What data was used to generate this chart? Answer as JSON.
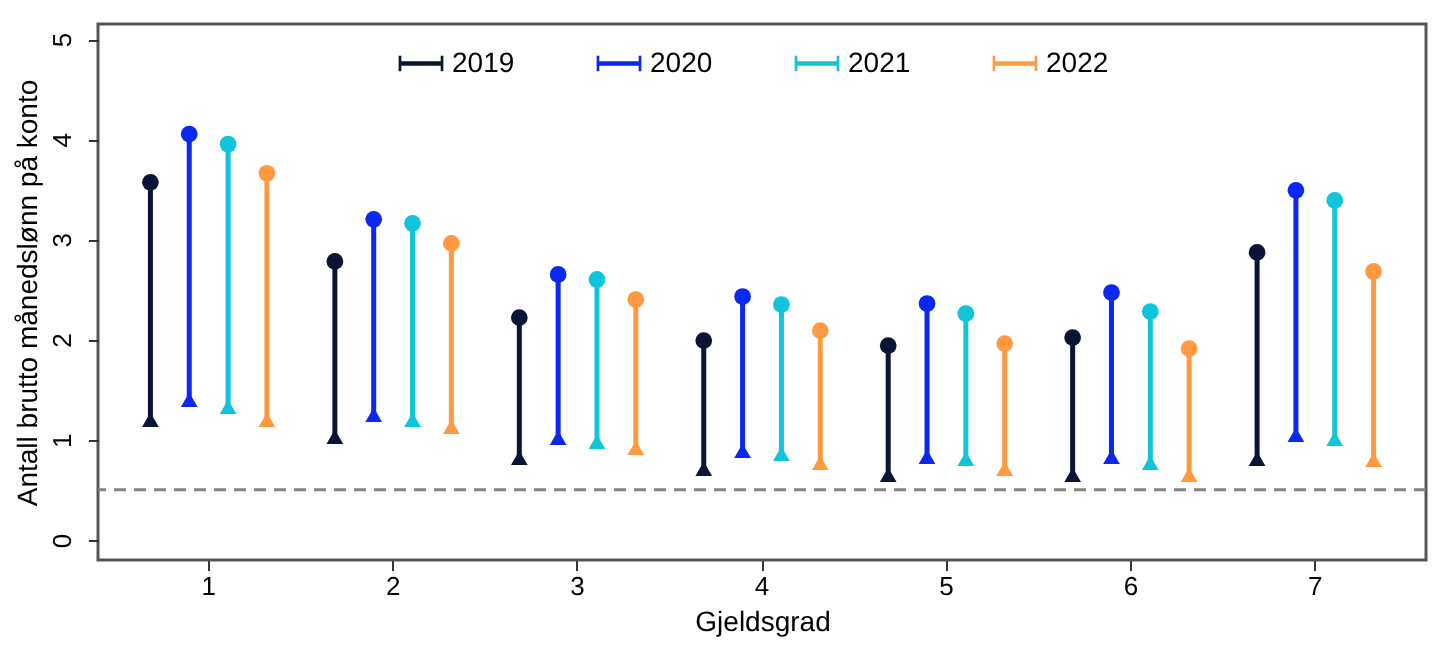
{
  "chart_data": {
    "type": "bar",
    "xlabel": "Gjeldsgrad",
    "ylabel": "Antall brutto månedslønn på konto",
    "categories": [
      "1",
      "2",
      "3",
      "4",
      "5",
      "6",
      "7"
    ],
    "series": [
      {
        "name": "2019",
        "color": "#0a1435",
        "base": [
          1.2,
          1.03,
          0.82,
          0.71,
          0.65,
          0.65,
          0.81
        ],
        "values": [
          2.37,
          1.75,
          1.4,
          1.28,
          1.29,
          1.37,
          2.06
        ]
      },
      {
        "name": "2020",
        "color": "#0a28f0",
        "base": [
          1.4,
          1.25,
          1.02,
          0.89,
          0.83,
          0.83,
          1.05
        ],
        "values": [
          2.65,
          1.95,
          1.63,
          1.54,
          1.53,
          1.64,
          2.44
        ]
      },
      {
        "name": "2021",
        "color": "#10c4dc",
        "base": [
          1.33,
          1.2,
          0.98,
          0.86,
          0.81,
          0.77,
          1.01
        ],
        "values": [
          2.62,
          1.96,
          1.62,
          1.49,
          1.45,
          1.51,
          2.38
        ]
      },
      {
        "name": "2022",
        "color": "#ff9a40",
        "base": [
          1.2,
          1.13,
          0.92,
          0.77,
          0.71,
          0.65,
          0.8
        ],
        "values": [
          2.46,
          1.83,
          1.48,
          1.32,
          1.25,
          1.26,
          1.88
        ]
      },
      {
        "type": "scatter",
        "marker": "circle",
        "color": "#0a1435",
        "x": [
          "1",
          "2",
          "3",
          "4",
          "5",
          "6",
          "7"
        ],
        "values": [
          3.57,
          2.78,
          2.22,
          1.99,
          1.94,
          2.02,
          2.87
        ]
      },
      {
        "type": "scatter",
        "marker": "circle",
        "color": "#0a28f0",
        "x": [
          "1",
          "2",
          "3",
          "4",
          "5",
          "6",
          "7"
        ],
        "values": [
          4.05,
          3.2,
          2.65,
          2.43,
          2.36,
          2.47,
          3.49
        ]
      },
      {
        "type": "scatter",
        "marker": "circle",
        "color": "#10c4dc",
        "x": [
          "1",
          "2",
          "3",
          "4",
          "5",
          "6",
          "7"
        ],
        "values": [
          3.95,
          3.16,
          2.6,
          2.35,
          2.26,
          2.28,
          3.39
        ]
      },
      {
        "type": "scatter",
        "marker": "circle",
        "color": "#ff9a40",
        "x": [
          "1",
          "2",
          "3",
          "4",
          "5",
          "6",
          "7"
        ],
        "values": [
          3.66,
          2.96,
          2.4,
          2.09,
          1.96,
          1.91,
          2.68
        ]
      },
      {
        "type": "scatter",
        "marker": "triangle",
        "color": "#0a1435",
        "x": [
          "1",
          "2",
          "3",
          "4",
          "5",
          "6",
          "7"
        ],
        "values": [
          1.2,
          1.03,
          0.82,
          0.71,
          0.65,
          0.65,
          0.81
        ]
      },
      {
        "type": "scatter",
        "marker": "triangle",
        "color": "#0a28f0",
        "x": [
          "1",
          "2",
          "3",
          "4",
          "5",
          "6",
          "7"
        ],
        "values": [
          1.4,
          1.25,
          1.02,
          0.89,
          0.83,
          0.83,
          1.05
        ]
      },
      {
        "type": "scatter",
        "marker": "triangle",
        "color": "#10c4dc",
        "x": [
          "1",
          "2",
          "3",
          "4",
          "5",
          "6",
          "7"
        ],
        "values": [
          1.33,
          1.2,
          0.98,
          0.86,
          0.81,
          0.77,
          1.01
        ]
      },
      {
        "type": "scatter",
        "marker": "triangle",
        "color": "#ff9a40",
        "x": [
          "1",
          "2",
          "3",
          "4",
          "5",
          "6",
          "7"
        ],
        "values": [
          1.2,
          1.13,
          0.92,
          0.77,
          0.71,
          0.65,
          0.8
        ]
      }
    ],
    "ylim": [
      -0.2,
      5.15
    ],
    "yticks": [
      0,
      1,
      2,
      3,
      4,
      5
    ],
    "ref_lines": [
      {
        "axis": "y",
        "value": 0.5,
        "color": "#808080",
        "line_style": "dashed"
      }
    ],
    "legend": "top",
    "grid": false
  }
}
